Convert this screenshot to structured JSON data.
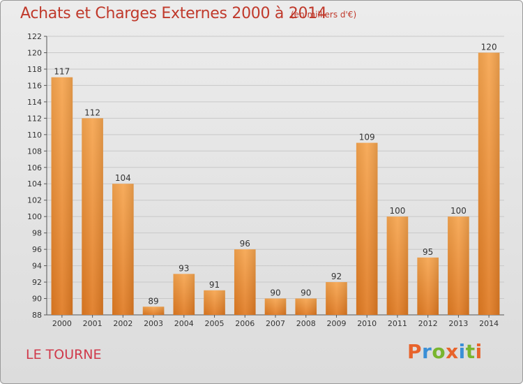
{
  "chart_data": {
    "type": "bar",
    "title": "Achats et Charges Externes 2000 à 2014",
    "subtitle": "(en milliers d'€)",
    "categories": [
      "2000",
      "2001",
      "2002",
      "2003",
      "2004",
      "2005",
      "2006",
      "2007",
      "2008",
      "2009",
      "2010",
      "2011",
      "2012",
      "2013",
      "2014"
    ],
    "values": [
      117,
      112,
      104,
      89,
      93,
      91,
      96,
      90,
      90,
      92,
      109,
      100,
      95,
      100,
      120
    ],
    "ylim": [
      88,
      122
    ],
    "yticks": [
      88,
      90,
      92,
      94,
      96,
      98,
      100,
      102,
      104,
      106,
      108,
      110,
      112,
      114,
      116,
      118,
      120,
      122
    ],
    "grid": true,
    "colors": {
      "bar_light": "#f6a54f",
      "bar_dark": "#e07a22",
      "grid": "#c8c8c8"
    }
  },
  "commune": "LE TOURNE",
  "logo": {
    "letters": [
      "P",
      "r",
      "o",
      "x",
      "i",
      "t",
      "i"
    ],
    "colors": [
      "#e8632b",
      "#3a8fd6",
      "#79b52e",
      "#e8632b",
      "#3a8fd6",
      "#79b52e",
      "#e8632b"
    ]
  }
}
